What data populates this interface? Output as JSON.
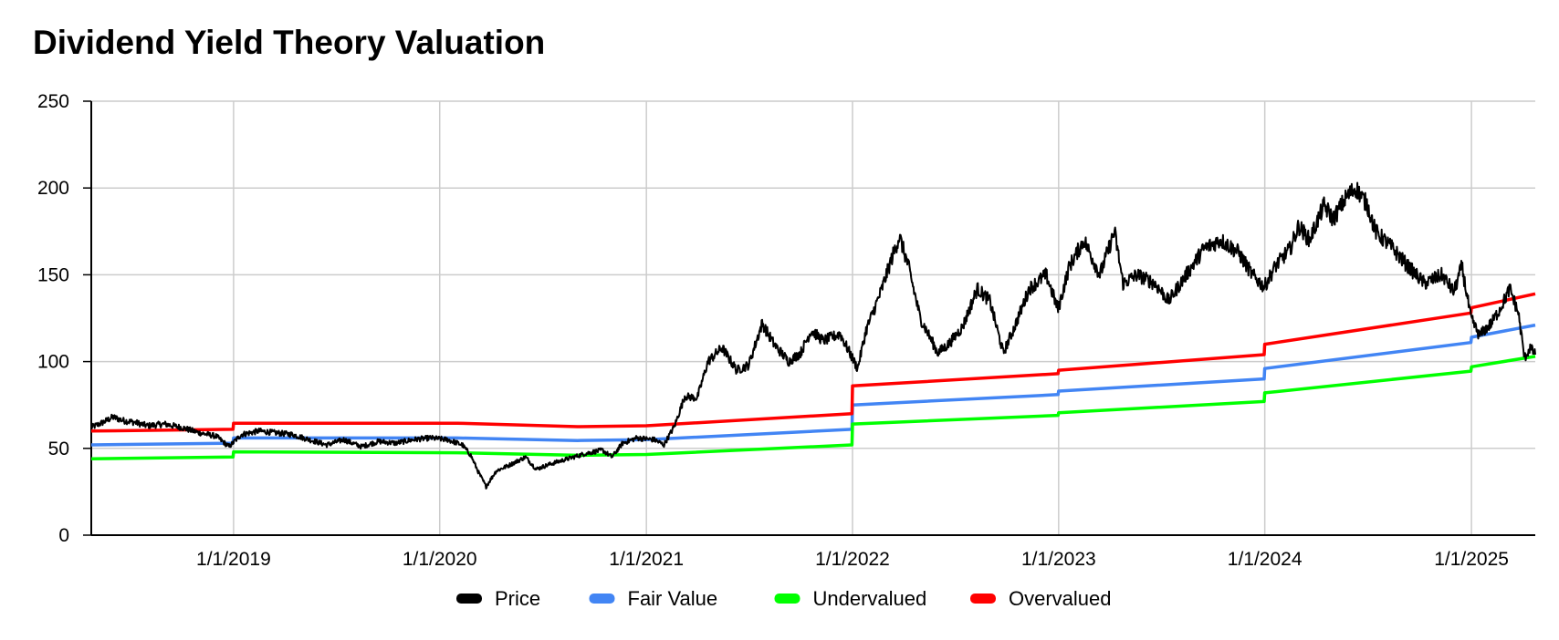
{
  "chart_data": {
    "type": "line",
    "title": "Dividend Yield Theory Valuation",
    "xlabel": "",
    "ylabel": "",
    "x_range": [
      "2018-04-24",
      "2025-04-24"
    ],
    "ylim": [
      0,
      250
    ],
    "y_ticks": [
      0,
      50,
      100,
      150,
      200,
      250
    ],
    "x_ticks": [
      {
        "date": "2019-01-01",
        "label": "1/1/2019"
      },
      {
        "date": "2020-01-01",
        "label": "1/1/2020"
      },
      {
        "date": "2021-01-01",
        "label": "1/1/2021"
      },
      {
        "date": "2022-01-01",
        "label": "1/1/2022"
      },
      {
        "date": "2023-01-01",
        "label": "1/1/2023"
      },
      {
        "date": "2024-01-01",
        "label": "1/1/2024"
      },
      {
        "date": "2025-01-01",
        "label": "1/1/2025"
      }
    ],
    "grid": true,
    "legend_position": "bottom",
    "series": [
      {
        "name": "Price",
        "color": "#000000",
        "points": [
          [
            "2018-04-24",
            62
          ],
          [
            "2018-05-15",
            65
          ],
          [
            "2018-06-01",
            68
          ],
          [
            "2018-06-20",
            66
          ],
          [
            "2018-07-10",
            65
          ],
          [
            "2018-08-01",
            63
          ],
          [
            "2018-09-01",
            64
          ],
          [
            "2018-10-01",
            62
          ],
          [
            "2018-11-01",
            59
          ],
          [
            "2018-12-01",
            57
          ],
          [
            "2018-12-24",
            51
          ],
          [
            "2019-01-15",
            58
          ],
          [
            "2019-02-15",
            60
          ],
          [
            "2019-03-15",
            59
          ],
          [
            "2019-04-15",
            58
          ],
          [
            "2019-05-15",
            55
          ],
          [
            "2019-06-15",
            52
          ],
          [
            "2019-07-15",
            55
          ],
          [
            "2019-08-15",
            51
          ],
          [
            "2019-09-15",
            54
          ],
          [
            "2019-10-15",
            53
          ],
          [
            "2019-11-15",
            55
          ],
          [
            "2019-12-15",
            56
          ],
          [
            "2020-01-15",
            55
          ],
          [
            "2020-02-10",
            52
          ],
          [
            "2020-02-25",
            46
          ],
          [
            "2020-03-10",
            36
          ],
          [
            "2020-03-23",
            28
          ],
          [
            "2020-04-10",
            37
          ],
          [
            "2020-05-01",
            40
          ],
          [
            "2020-06-01",
            45
          ],
          [
            "2020-06-20",
            38
          ],
          [
            "2020-07-15",
            41
          ],
          [
            "2020-08-15",
            44
          ],
          [
            "2020-09-15",
            47
          ],
          [
            "2020-10-15",
            49
          ],
          [
            "2020-11-01",
            45
          ],
          [
            "2020-11-20",
            53
          ],
          [
            "2020-12-15",
            56
          ],
          [
            "2021-01-15",
            55
          ],
          [
            "2021-02-01",
            52
          ],
          [
            "2021-02-20",
            63
          ],
          [
            "2021-03-10",
            80
          ],
          [
            "2021-04-01",
            79
          ],
          [
            "2021-04-20",
            100
          ],
          [
            "2021-05-15",
            108
          ],
          [
            "2021-06-10",
            95
          ],
          [
            "2021-07-01",
            98
          ],
          [
            "2021-07-25",
            122
          ],
          [
            "2021-08-15",
            110
          ],
          [
            "2021-09-10",
            100
          ],
          [
            "2021-10-01",
            105
          ],
          [
            "2021-10-20",
            118
          ],
          [
            "2021-11-10",
            112
          ],
          [
            "2021-12-10",
            116
          ],
          [
            "2022-01-10",
            96
          ],
          [
            "2022-01-25",
            118
          ],
          [
            "2022-02-20",
            140
          ],
          [
            "2022-03-10",
            158
          ],
          [
            "2022-03-25",
            172
          ],
          [
            "2022-04-10",
            155
          ],
          [
            "2022-05-01",
            125
          ],
          [
            "2022-06-01",
            105
          ],
          [
            "2022-06-20",
            110
          ],
          [
            "2022-07-15",
            120
          ],
          [
            "2022-08-10",
            142
          ],
          [
            "2022-09-01",
            135
          ],
          [
            "2022-09-25",
            105
          ],
          [
            "2022-10-15",
            120
          ],
          [
            "2022-11-10",
            142
          ],
          [
            "2022-12-10",
            150
          ],
          [
            "2022-12-31",
            130
          ],
          [
            "2023-01-20",
            155
          ],
          [
            "2023-02-15",
            170
          ],
          [
            "2023-03-15",
            150
          ],
          [
            "2023-04-10",
            175
          ],
          [
            "2023-04-25",
            145
          ],
          [
            "2023-05-20",
            150
          ],
          [
            "2023-06-20",
            145
          ],
          [
            "2023-07-15",
            135
          ],
          [
            "2023-08-15",
            150
          ],
          [
            "2023-09-15",
            165
          ],
          [
            "2023-10-15",
            170
          ],
          [
            "2023-11-15",
            163
          ],
          [
            "2023-12-10",
            150
          ],
          [
            "2023-12-31",
            143
          ],
          [
            "2024-01-20",
            155
          ],
          [
            "2024-02-15",
            165
          ],
          [
            "2024-03-01",
            178
          ],
          [
            "2024-03-20",
            170
          ],
          [
            "2024-04-15",
            190
          ],
          [
            "2024-05-01",
            182
          ],
          [
            "2024-05-25",
            195
          ],
          [
            "2024-06-10",
            200
          ],
          [
            "2024-07-01",
            190
          ],
          [
            "2024-07-15",
            175
          ],
          [
            "2024-08-15",
            165
          ],
          [
            "2024-09-10",
            155
          ],
          [
            "2024-10-10",
            145
          ],
          [
            "2024-11-10",
            150
          ],
          [
            "2024-12-01",
            140
          ],
          [
            "2024-12-15",
            155
          ],
          [
            "2024-12-31",
            125
          ],
          [
            "2025-01-15",
            115
          ],
          [
            "2025-02-05",
            122
          ],
          [
            "2025-02-20",
            130
          ],
          [
            "2025-03-10",
            142
          ],
          [
            "2025-03-25",
            128
          ],
          [
            "2025-04-05",
            102
          ],
          [
            "2025-04-15",
            108
          ],
          [
            "2025-04-24",
            104
          ]
        ]
      },
      {
        "name": "Fair Value",
        "color": "#4285f4",
        "points": [
          [
            "2018-04-24",
            52
          ],
          [
            "2018-12-31",
            53
          ],
          [
            "2019-01-01",
            56
          ],
          [
            "2020-02-01",
            56
          ],
          [
            "2020-09-01",
            54.5
          ],
          [
            "2021-01-01",
            55
          ],
          [
            "2021-12-31",
            61
          ],
          [
            "2022-01-01",
            75
          ],
          [
            "2022-12-31",
            81
          ],
          [
            "2023-01-01",
            83
          ],
          [
            "2023-12-31",
            90
          ],
          [
            "2024-01-01",
            96
          ],
          [
            "2024-12-31",
            111
          ],
          [
            "2025-01-01",
            114
          ],
          [
            "2025-04-24",
            121
          ]
        ]
      },
      {
        "name": "Undervalued",
        "color": "#00ff00",
        "points": [
          [
            "2018-04-24",
            44
          ],
          [
            "2018-12-31",
            45
          ],
          [
            "2019-01-01",
            48
          ],
          [
            "2020-02-01",
            47.5
          ],
          [
            "2020-09-01",
            46
          ],
          [
            "2021-01-01",
            46.5
          ],
          [
            "2021-12-31",
            52
          ],
          [
            "2022-01-01",
            64
          ],
          [
            "2022-12-31",
            69
          ],
          [
            "2023-01-01",
            70.5
          ],
          [
            "2023-12-31",
            77
          ],
          [
            "2024-01-01",
            82
          ],
          [
            "2024-12-31",
            94.5
          ],
          [
            "2025-01-01",
            97
          ],
          [
            "2025-04-24",
            103
          ]
        ]
      },
      {
        "name": "Overvalued",
        "color": "#ff0000",
        "points": [
          [
            "2018-04-24",
            60
          ],
          [
            "2018-12-31",
            61
          ],
          [
            "2019-01-01",
            64.5
          ],
          [
            "2020-02-01",
            64.5
          ],
          [
            "2020-09-01",
            62.5
          ],
          [
            "2021-01-01",
            63
          ],
          [
            "2021-12-31",
            70
          ],
          [
            "2022-01-01",
            86
          ],
          [
            "2022-12-31",
            93
          ],
          [
            "2023-01-01",
            95
          ],
          [
            "2023-12-31",
            104
          ],
          [
            "2024-01-01",
            110
          ],
          [
            "2024-12-31",
            128
          ],
          [
            "2025-01-01",
            131
          ],
          [
            "2025-04-24",
            139
          ]
        ]
      }
    ]
  }
}
